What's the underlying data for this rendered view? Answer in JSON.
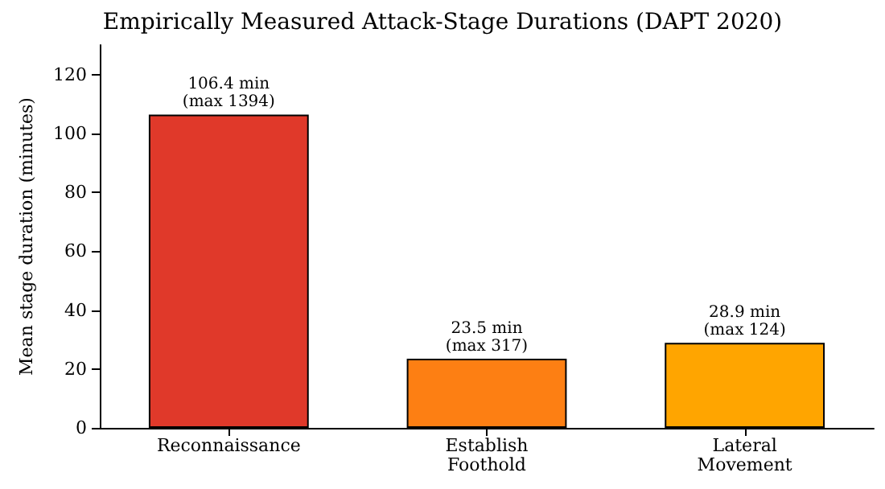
{
  "chart_data": {
    "type": "bar",
    "title": "Empirically Measured Attack-Stage Durations (DAPT 2020)",
    "ylabel": "Mean stage duration (minutes)",
    "categories": [
      "Reconnaissance",
      "Establish\nFoothold",
      "Lateral\nMovement"
    ],
    "values": [
      106.4,
      23.5,
      28.9
    ],
    "colors": [
      "#e0392a",
      "#fd7f13",
      "#ffa500"
    ],
    "value_labels": [
      "106.4 min\n(max 1394)",
      "23.5 min\n(max 317)",
      "28.9 min\n(max 124)"
    ],
    "ylim": [
      0,
      130
    ],
    "yticks": [
      0,
      20,
      40,
      60,
      80,
      100,
      120
    ],
    "grid": false
  }
}
